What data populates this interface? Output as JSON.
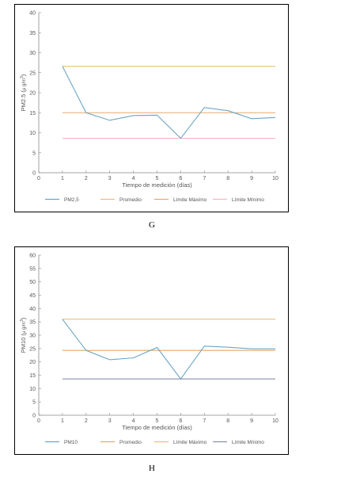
{
  "chart_data": [
    {
      "type": "line",
      "caption": "G",
      "xlabel": "Tiempo de medición (días)",
      "ylabel": "PM2.5 (μg/m³)",
      "ylabel_main": "PM2.5 (",
      "ylabel_unit": "μ g/m",
      "ylabel_sup": "3",
      "ylabel_close": ")",
      "xlim": [
        0,
        10
      ],
      "ylim": [
        0,
        40
      ],
      "xticks": [
        0,
        1,
        2,
        3,
        4,
        5,
        6,
        7,
        8,
        9,
        10
      ],
      "yticks": [
        0,
        5,
        10,
        15,
        20,
        25,
        30,
        35,
        40
      ],
      "grid": false,
      "legend_position": "bottom",
      "series": [
        {
          "name": "PM2,5",
          "color": "#6aa6c8",
          "x": [
            1,
            2,
            3,
            4,
            5,
            6,
            7,
            8,
            9,
            10
          ],
          "y": [
            26.6,
            15.0,
            13.1,
            14.3,
            14.4,
            8.6,
            16.3,
            15.5,
            13.5,
            13.8
          ]
        },
        {
          "name": "Promedio",
          "color": "#e8c07a",
          "x": [
            1,
            10
          ],
          "y": [
            26.6,
            26.6
          ]
        },
        {
          "name": "Límite Máximo",
          "color": "#e8a86a",
          "x": [
            1,
            10
          ],
          "y": [
            15.0,
            15.0
          ]
        },
        {
          "name": "Límite Mínimo",
          "color": "#f0b8c4",
          "x": [
            1,
            10
          ],
          "y": [
            8.6,
            8.6
          ]
        }
      ]
    },
    {
      "type": "line",
      "caption": "H",
      "xlabel": "Tiempo de medición (días)",
      "ylabel": "PM10 (μg/m³)",
      "ylabel_main": "PM10 (",
      "ylabel_unit": "μ g/m",
      "ylabel_sup": "3",
      "ylabel_close": ")",
      "xlim": [
        0,
        10
      ],
      "ylim": [
        0,
        60
      ],
      "xticks": [
        0,
        1,
        2,
        3,
        4,
        5,
        6,
        7,
        8,
        9,
        10
      ],
      "yticks": [
        0,
        5,
        10,
        15,
        20,
        25,
        30,
        35,
        40,
        45,
        50,
        55,
        60
      ],
      "grid": false,
      "legend_position": "bottom",
      "series": [
        {
          "name": "PM10",
          "color": "#6aa6c8",
          "x": [
            1,
            2,
            3,
            4,
            5,
            6,
            7,
            8,
            9,
            10
          ],
          "y": [
            36.0,
            24.3,
            20.8,
            21.5,
            25.4,
            13.6,
            25.9,
            25.5,
            24.9,
            24.9
          ]
        },
        {
          "name": "Promedio",
          "color": "#e8a86a",
          "x": [
            1,
            10
          ],
          "y": [
            24.3,
            24.3
          ]
        },
        {
          "name": "Límite Máximo",
          "color": "#e8c07a",
          "x": [
            1,
            10
          ],
          "y": [
            36.0,
            36.0
          ]
        },
        {
          "name": "Límite Mínimo",
          "color": "#8a8fa8",
          "x": [
            1,
            10
          ],
          "y": [
            13.6,
            13.6
          ]
        }
      ]
    }
  ]
}
